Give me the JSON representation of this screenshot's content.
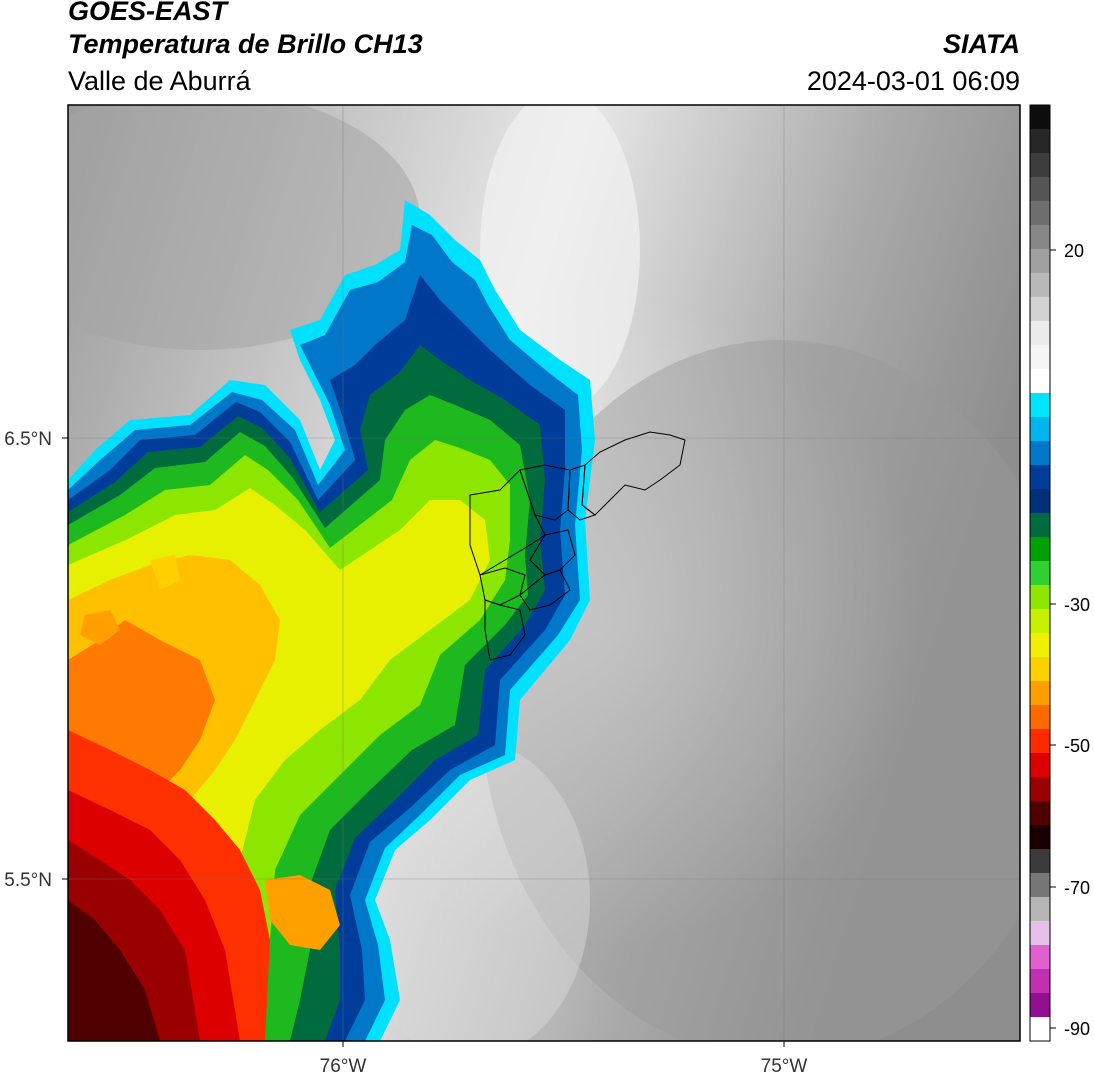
{
  "header": {
    "satellite": "GOES-EAST",
    "product": "Temperatura de Brillo CH13",
    "region": "Valle de Aburrá",
    "agency": "SIATA",
    "datetime": "2024-03-01 06:09"
  },
  "axes": {
    "lat_labels": [
      "6.5°N",
      "5.5°N"
    ],
    "lon_labels": [
      "76°W",
      "75°W"
    ]
  },
  "colorbar": {
    "tick_labels": [
      "20",
      "-30",
      "-50",
      "-70",
      "-90"
    ],
    "colors": [
      "#0d0d0d",
      "#262626",
      "#3d3d3d",
      "#555555",
      "#6e6e6e",
      "#878787",
      "#a0a0a0",
      "#b9b9b9",
      "#d2d2d2",
      "#ebebeb",
      "#f5f5f5",
      "#ffffff",
      "#00e5ff",
      "#00b4ee",
      "#0077c8",
      "#003c9a",
      "#00307a",
      "#006b3c",
      "#00a000",
      "#30d030",
      "#8de600",
      "#c8f000",
      "#f0f000",
      "#ffd000",
      "#ffa000",
      "#ff6a00",
      "#ff2a00",
      "#dd0000",
      "#9a0000",
      "#500000",
      "#1a0000",
      "#3b3b3b",
      "#777777",
      "#b5b5b5",
      "#e6c0e6",
      "#e060d0",
      "#c030b0",
      "#901090",
      "#ffffff"
    ]
  }
}
